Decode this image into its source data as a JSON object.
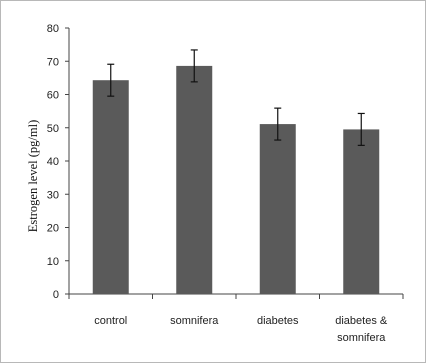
{
  "chart_data": {
    "type": "bar",
    "categories": [
      [
        "control"
      ],
      [
        "somnifera"
      ],
      [
        "diabetes"
      ],
      [
        "diabetes &",
        "somnifera"
      ]
    ],
    "values": [
      64.3,
      68.6,
      51.1,
      49.5
    ],
    "errors": [
      4.8,
      4.8,
      4.8,
      4.8
    ],
    "title": "",
    "xlabel": "",
    "ylabel": "Estrogen level (pg/ml)",
    "ylim": [
      0,
      80
    ],
    "yticks": [
      0,
      10,
      20,
      30,
      40,
      50,
      60,
      70,
      80
    ],
    "grid": false,
    "legend": "none",
    "colors": {
      "bar": "#5a5a5a",
      "axis": "#444444",
      "error": "#111111"
    }
  }
}
